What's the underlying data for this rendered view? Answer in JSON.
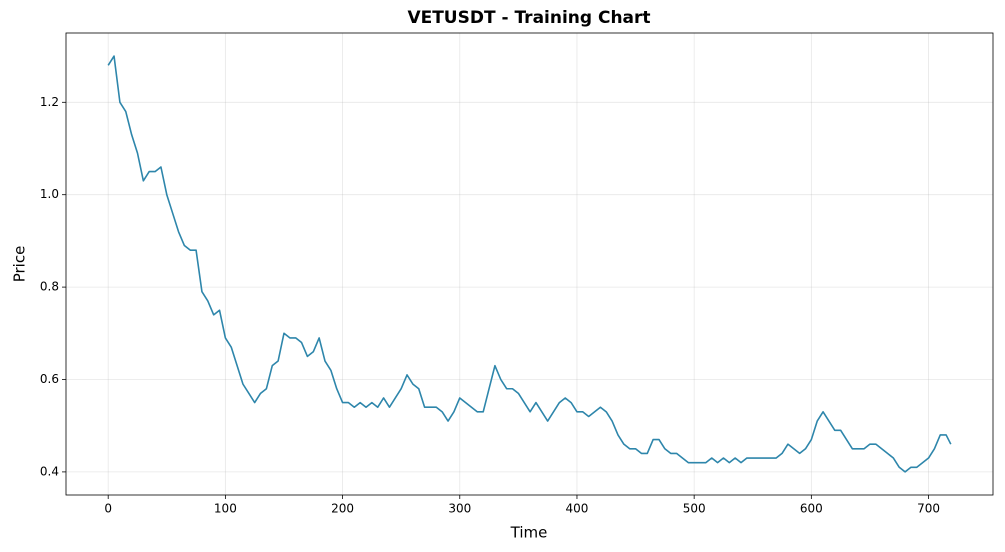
{
  "chart_data": {
    "type": "line",
    "title": "VETUSDT - Training Chart",
    "xlabel": "Time",
    "ylabel": "Price",
    "x": [
      0,
      5,
      10,
      15,
      20,
      25,
      30,
      35,
      40,
      45,
      50,
      55,
      60,
      65,
      70,
      75,
      80,
      85,
      90,
      95,
      100,
      105,
      110,
      115,
      120,
      125,
      130,
      135,
      140,
      145,
      150,
      155,
      160,
      165,
      170,
      175,
      180,
      185,
      190,
      195,
      200,
      205,
      210,
      215,
      220,
      225,
      230,
      235,
      240,
      245,
      250,
      255,
      260,
      265,
      270,
      275,
      280,
      285,
      290,
      295,
      300,
      305,
      310,
      315,
      320,
      325,
      330,
      335,
      340,
      345,
      350,
      355,
      360,
      365,
      370,
      375,
      380,
      385,
      390,
      395,
      400,
      405,
      410,
      415,
      420,
      425,
      430,
      435,
      440,
      445,
      450,
      455,
      460,
      465,
      470,
      475,
      480,
      485,
      490,
      495,
      500,
      505,
      510,
      515,
      520,
      525,
      530,
      535,
      540,
      545,
      550,
      555,
      560,
      565,
      570,
      575,
      580,
      585,
      590,
      595,
      600,
      605,
      610,
      615,
      620,
      625,
      630,
      635,
      640,
      645,
      650,
      655,
      660,
      665,
      670,
      675,
      680,
      685,
      690,
      695,
      700,
      705,
      710,
      715,
      719
    ],
    "series": [
      {
        "name": "VETUSDT",
        "color": "#2e86ab",
        "values": [
          1.28,
          1.3,
          1.2,
          1.18,
          1.13,
          1.09,
          1.03,
          1.05,
          1.05,
          1.06,
          1.0,
          0.96,
          0.92,
          0.89,
          0.88,
          0.88,
          0.79,
          0.77,
          0.74,
          0.75,
          0.69,
          0.67,
          0.63,
          0.59,
          0.57,
          0.55,
          0.57,
          0.58,
          0.63,
          0.64,
          0.7,
          0.69,
          0.69,
          0.68,
          0.65,
          0.66,
          0.69,
          0.64,
          0.62,
          0.58,
          0.55,
          0.55,
          0.54,
          0.55,
          0.54,
          0.55,
          0.54,
          0.56,
          0.54,
          0.56,
          0.58,
          0.61,
          0.59,
          0.58,
          0.54,
          0.54,
          0.54,
          0.53,
          0.51,
          0.53,
          0.56,
          0.55,
          0.54,
          0.53,
          0.53,
          0.58,
          0.63,
          0.6,
          0.58,
          0.58,
          0.57,
          0.55,
          0.53,
          0.55,
          0.53,
          0.51,
          0.53,
          0.55,
          0.56,
          0.55,
          0.53,
          0.53,
          0.52,
          0.53,
          0.54,
          0.53,
          0.51,
          0.48,
          0.46,
          0.45,
          0.45,
          0.44,
          0.44,
          0.47,
          0.47,
          0.45,
          0.44,
          0.44,
          0.43,
          0.42,
          0.42,
          0.42,
          0.42,
          0.43,
          0.42,
          0.43,
          0.42,
          0.43,
          0.42,
          0.43,
          0.43,
          0.43,
          0.43,
          0.43,
          0.43,
          0.44,
          0.46,
          0.45,
          0.44,
          0.45,
          0.47,
          0.51,
          0.53,
          0.51,
          0.49,
          0.49,
          0.47,
          0.45,
          0.45,
          0.45,
          0.46,
          0.46,
          0.45,
          0.44,
          0.43,
          0.41,
          0.4,
          0.41,
          0.41,
          0.42,
          0.43,
          0.45,
          0.48,
          0.48,
          0.46
        ]
      }
    ],
    "xlim": [
      -36,
      755
    ],
    "xticks": [
      0,
      100,
      200,
      300,
      400,
      500,
      600,
      700
    ],
    "ylim": [
      0.35,
      1.35
    ],
    "yticks": [
      0.4,
      0.6,
      0.8,
      {
        "value": 1,
        "label": "1.0"
      },
      1.2
    ],
    "grid": true
  }
}
